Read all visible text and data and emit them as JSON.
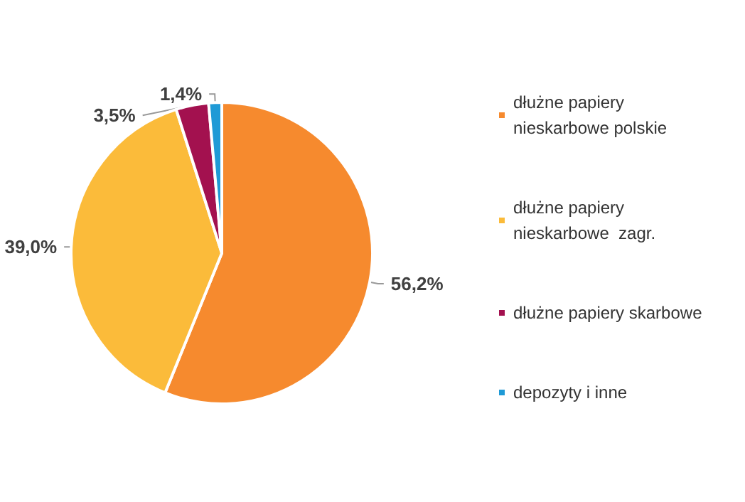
{
  "chart_data": {
    "type": "pie",
    "categories": [
      "dłużne papiery nieskarbowe polskie",
      "dłużne papiery nieskarbowe  zagr.",
      "dłużne papiery skarbowe",
      "depozyty i inne"
    ],
    "values": [
      56.2,
      39.0,
      3.5,
      1.4
    ],
    "colors": [
      "#f68a2e",
      "#fbbb3a",
      "#a3114f",
      "#1f9ad6"
    ],
    "value_labels": [
      "56,2%",
      "39,0%",
      "3,5%",
      "1,4%"
    ],
    "legend": "right"
  }
}
